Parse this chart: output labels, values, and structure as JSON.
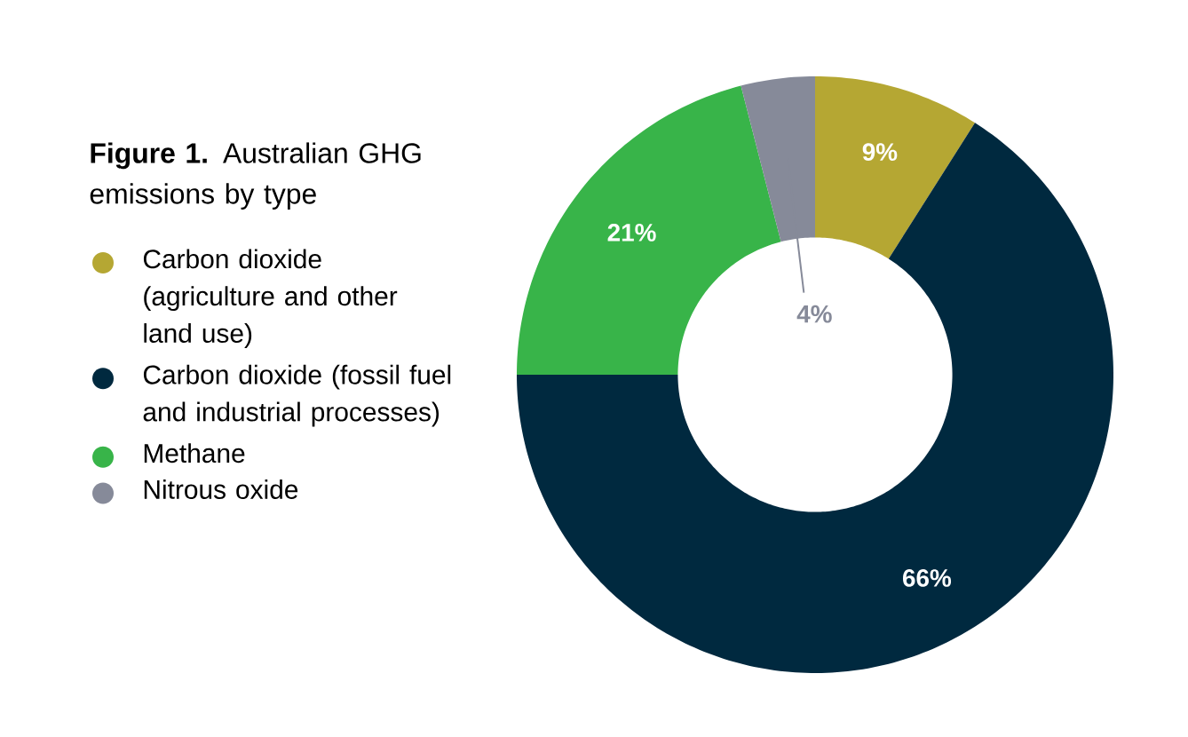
{
  "chart_data": {
    "type": "donut",
    "title": "**Figure 1.** Australian GHG emissions by type",
    "categories": [
      "Carbon dioxide (agriculture and other land use)",
      "Carbon dioxide (fossil fuel and industrial processes)",
      "Methane",
      "Nitrous oxide"
    ],
    "values": [
      9,
      66,
      21,
      4
    ],
    "value_labels": [
      "9%",
      "66%",
      "21%",
      "4%"
    ],
    "colors": [
      "#b5a733",
      "#00293f",
      "#38b449",
      "#868a99"
    ],
    "legend": "left"
  }
}
